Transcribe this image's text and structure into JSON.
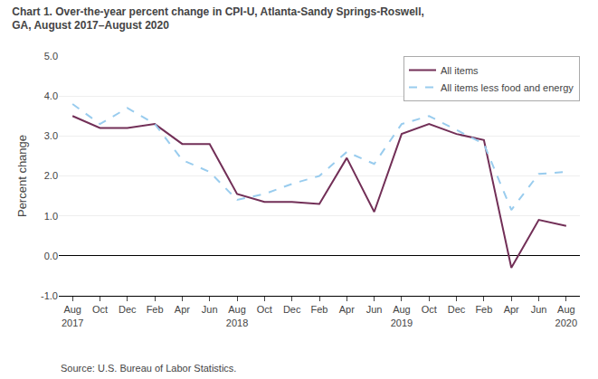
{
  "chart_data": {
    "type": "line",
    "title": "Chart 1. Over-the-year percent change in CPI-U, Atlanta-Sandy Springs-Roswell,\nGA, August 2017–August 2020",
    "y_label": "Percent change",
    "annotations": [
      "Source: U.S. Bureau of Labor Statistics."
    ],
    "categories": [
      "Aug\n2017",
      "Oct",
      "Dec",
      "Feb",
      "Apr",
      "Jun",
      "Aug\n2018",
      "Oct",
      "Dec",
      "Feb",
      "Apr",
      "Jun",
      "Aug\n2019",
      "Oct",
      "Dec",
      "Feb",
      "Apr",
      "Jun",
      "Aug\n2020"
    ],
    "series": [
      {
        "name": "All items",
        "color": "#722F57",
        "line_style": "solid",
        "values": [
          3.5,
          3.2,
          3.2,
          3.3,
          2.8,
          2.8,
          1.55,
          1.35,
          1.35,
          1.3,
          2.45,
          1.1,
          3.05,
          3.3,
          3.05,
          2.9,
          -0.3,
          0.9,
          0.75
        ]
      },
      {
        "name": "All items less food and energy",
        "color": "#99ccee",
        "line_style": "dashed",
        "values": [
          3.8,
          3.3,
          3.7,
          3.3,
          2.4,
          2.1,
          1.4,
          1.55,
          1.8,
          2.0,
          2.6,
          2.3,
          3.3,
          3.5,
          3.15,
          2.8,
          1.15,
          2.05,
          2.1
        ]
      }
    ],
    "ylim": [
      -1.0,
      5.0
    ],
    "yticks": [
      {
        "value": -1.0,
        "label": "-1.0"
      },
      {
        "value": 0.0,
        "label": "0.0"
      },
      {
        "value": 1.0,
        "label": "1.0"
      },
      {
        "value": 2.0,
        "label": "2.0"
      },
      {
        "value": 3.0,
        "label": "3.0"
      },
      {
        "value": 4.0,
        "label": "4.0"
      },
      {
        "value": 5.0,
        "label": "5.0"
      }
    ],
    "grid": true,
    "legend": "upper right"
  }
}
